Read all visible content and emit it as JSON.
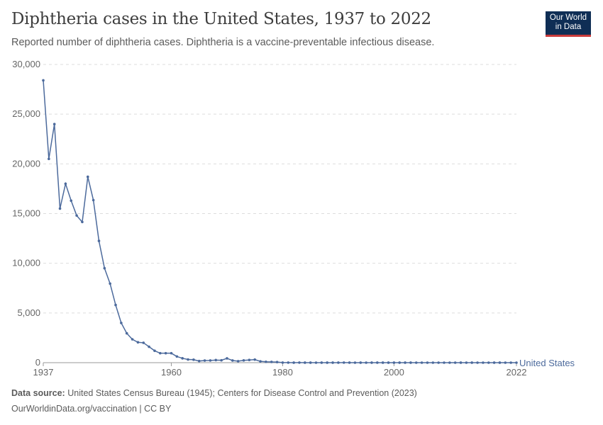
{
  "title": "Diphtheria cases in the United States, 1937 to 2022",
  "subtitle": "Reported number of diphtheria cases. Diphtheria is a vaccine-preventable infectious disease.",
  "logo": {
    "line1": "Our World",
    "line2": "in Data"
  },
  "footer": {
    "source_label": "Data source:",
    "source": "United States Census Bureau (1945); Centers for Disease Control and Prevention (2023)",
    "url": "OurWorldinData.org/vaccination | CC BY"
  },
  "colors": {
    "series": "#4c6a9c",
    "grid": "#dddddd",
    "text": "#666666"
  },
  "chart_data": {
    "type": "line",
    "title": "Diphtheria cases in the United States, 1937 to 2022",
    "xlim": [
      1937,
      2022
    ],
    "ylim": [
      0,
      30000
    ],
    "x_ticks": [
      "1937",
      "1960",
      "1980",
      "2000",
      "2022"
    ],
    "y_ticks": [
      "0",
      "5,000",
      "10,000",
      "15,000",
      "20,000",
      "25,000",
      "30,000"
    ],
    "grid": true,
    "series": [
      {
        "name": "United States",
        "x": [
          1937,
          1938,
          1939,
          1940,
          1941,
          1942,
          1943,
          1944,
          1945,
          1946,
          1947,
          1948,
          1949,
          1950,
          1951,
          1952,
          1953,
          1954,
          1955,
          1956,
          1957,
          1958,
          1959,
          1960,
          1961,
          1962,
          1963,
          1964,
          1965,
          1966,
          1967,
          1968,
          1969,
          1970,
          1971,
          1972,
          1973,
          1974,
          1975,
          1976,
          1977,
          1978,
          1979,
          1980,
          1981,
          1982,
          1983,
          1984,
          1985,
          1986,
          1987,
          1988,
          1989,
          1990,
          1991,
          1992,
          1993,
          1994,
          1995,
          1996,
          1997,
          1998,
          1999,
          2000,
          2001,
          2002,
          2003,
          2004,
          2005,
          2006,
          2007,
          2008,
          2009,
          2010,
          2011,
          2012,
          2013,
          2014,
          2015,
          2016,
          2017,
          2018,
          2019,
          2020,
          2021,
          2022
        ],
        "values": [
          28400,
          20500,
          24000,
          15500,
          18000,
          16300,
          14800,
          14150,
          18700,
          16350,
          12250,
          9500,
          7950,
          5800,
          4000,
          2950,
          2350,
          2050,
          2000,
          1600,
          1200,
          950,
          950,
          950,
          620,
          440,
          320,
          300,
          165,
          210,
          220,
          260,
          240,
          435,
          215,
          150,
          230,
          270,
          310,
          130,
          85,
          75,
          60,
          5,
          5,
          2,
          5,
          1,
          3,
          0,
          3,
          2,
          3,
          4,
          5,
          4,
          0,
          2,
          0,
          2,
          4,
          1,
          1,
          1,
          2,
          1,
          1,
          0,
          0,
          0,
          0,
          0,
          0,
          0,
          0,
          1,
          0,
          1,
          0,
          0,
          0,
          1,
          2,
          0,
          0,
          0
        ]
      }
    ]
  }
}
